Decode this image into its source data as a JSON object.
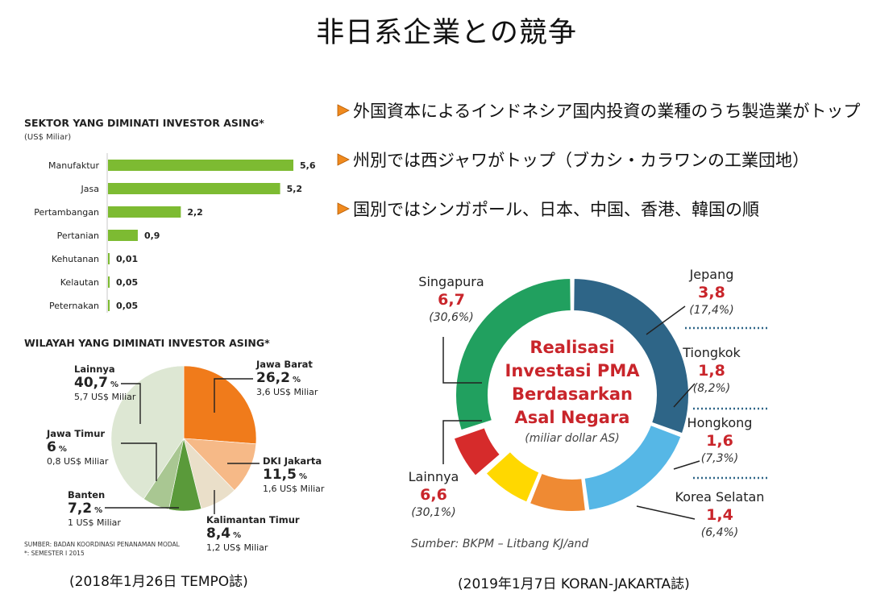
{
  "title": "非日系企業との競争",
  "bullets": [
    "外国資本によるインドネシア国内投資の業種のうち製造業がトップ",
    "州別では西ジャワがトップ（ブカシ・カラワンの工業団地）",
    "国別ではシンガポール、日本、中国、香港、韓国の順"
  ],
  "captions": {
    "left": "(2018年1月26日 TEMPO誌)",
    "right": "(2019年1月7日 KORAN-JAKARTA誌)"
  },
  "colors": {
    "bar": "#7dbb32",
    "bullet_arrow": "#f08a1e"
  },
  "chart_data": [
    {
      "type": "bar",
      "title": "SEKTOR YANG DIMINATI INVESTOR ASING*",
      "subtitle": "(US$ Miliar)",
      "categories": [
        "Manufaktur",
        "Jasa",
        "Pertambangan",
        "Pertanian",
        "Kehutanan",
        "Kelautan",
        "Peternakan"
      ],
      "values": [
        5.6,
        5.2,
        2.2,
        0.9,
        0.01,
        0.05,
        0.05
      ],
      "value_labels": [
        "5,6",
        "5,2",
        "2,2",
        "0,9",
        "0,01",
        "0,05",
        "0,05"
      ],
      "orientation": "horizontal"
    },
    {
      "type": "pie",
      "title": "WILAYAH YANG DIMINATI INVESTOR ASING*",
      "slices": [
        {
          "name": "Jawa Barat",
          "percent": 26.2,
          "pct_label": "26,2",
          "usd_label": "3,6 US$ Miliar",
          "color": "#f07b1b"
        },
        {
          "name": "DKI Jakarta",
          "percent": 11.5,
          "pct_label": "11,5",
          "usd_label": "1,6 US$ Miliar",
          "color": "#f6b987"
        },
        {
          "name": "Kalimantan Timur",
          "percent": 8.4,
          "pct_label": "8,4",
          "usd_label": "1,2 US$ Miliar",
          "color": "#eadfc9"
        },
        {
          "name": "Banten",
          "percent": 7.2,
          "pct_label": "7,2",
          "usd_label": "1 US$ Miliar",
          "color": "#5a9a3a"
        },
        {
          "name": "Jawa Timur",
          "percent": 6.0,
          "pct_label": "6",
          "usd_label": "0,8 US$ Miliar",
          "color": "#a9c792"
        },
        {
          "name": "Lainnya",
          "percent": 40.7,
          "pct_label": "40,7",
          "usd_label": "5,7 US$ Miliar",
          "color": "#dde7d3"
        }
      ],
      "pct_suffix": "%",
      "source": "SUMBER: BADAN KOORDINASI PENANAMAN MODAL",
      "note": "*: SEMESTER I 2015"
    },
    {
      "type": "pie",
      "variant": "donut",
      "center_title": [
        "Realisasi",
        "Investasi PMA",
        "Berdasarkan",
        "Asal Negara"
      ],
      "center_subtitle": "(miliar dollar AS)",
      "slices": [
        {
          "name": "Singapura",
          "value": 6.7,
          "value_label": "6,7",
          "percent_label": "(30,6%)",
          "color": "#2e6587"
        },
        {
          "name": "Jepang",
          "value": 3.8,
          "value_label": "3,8",
          "percent_label": "(17,4%)",
          "color": "#56b7e6"
        },
        {
          "name": "Tiongkok",
          "value": 1.8,
          "value_label": "1,8",
          "percent_label": "(8,2%)",
          "color": "#ef8a33"
        },
        {
          "name": "Hongkong",
          "value": 1.6,
          "value_label": "1,6",
          "percent_label": "(7,3%)",
          "color": "#ffd800"
        },
        {
          "name": "Korea Selatan",
          "value": 1.4,
          "value_label": "1,4",
          "percent_label": "(6,4%)",
          "color": "#d62b2b"
        },
        {
          "name": "Lainnya",
          "value": 6.6,
          "value_label": "6,6",
          "percent_label": "(30,1%)",
          "color": "#21a05f"
        }
      ],
      "source": "Sumber: BKPM – Litbang KJ/and"
    }
  ]
}
